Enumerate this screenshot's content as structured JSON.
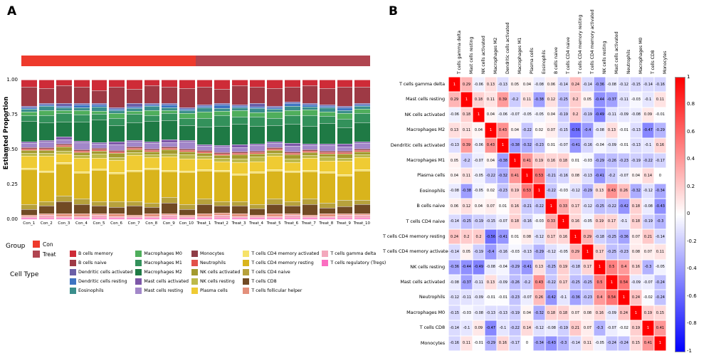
{
  "panels": {
    "a_label": "A",
    "b_label": "B"
  },
  "panel_a": {
    "y_title": "Estiamted Proportion",
    "group_title": "Group",
    "cell_type_title": "Cell Type"
  },
  "chart_data": [
    {
      "type": "bar",
      "subtype": "stacked-proportion",
      "ylabel": "Estiamted Proportion",
      "ylim": [
        0,
        1
      ],
      "ytick_labels": [
        "1.00",
        "0.75",
        "0.50",
        "0.25",
        "0.00"
      ],
      "groups": [
        {
          "name": "Con",
          "color": "#EE3A2C",
          "samples": 10
        },
        {
          "name": "Treat",
          "color": "#B04550",
          "samples": 10
        }
      ],
      "categories": [
        "Con_1",
        "Con_2",
        "Con_3",
        "Con_4",
        "Con_5",
        "Con_6",
        "Con_7",
        "Con_8",
        "Con_9",
        "Con_10",
        "Treat_1",
        "Treat_2",
        "Treat_3",
        "Treat_4",
        "Treat_5",
        "Treat_6",
        "Treat_7",
        "Treat_8",
        "Treat_9",
        "Treat_10"
      ],
      "cell_types": [
        {
          "name": "B cells memory",
          "color": "#CE2B37"
        },
        {
          "name": "B cells naive",
          "color": "#9E3A45"
        },
        {
          "name": "Dendritic cells activated",
          "color": "#6A5FA7"
        },
        {
          "name": "Dendritic cells resting",
          "color": "#3E74C2"
        },
        {
          "name": "Eosinophils",
          "color": "#3A8E8C"
        },
        {
          "name": "Macrophages M0",
          "color": "#4FAE5C"
        },
        {
          "name": "Macrophages M1",
          "color": "#33915B"
        },
        {
          "name": "Macrophages M2",
          "color": "#1F7A45"
        },
        {
          "name": "Mast cells activated",
          "color": "#7D57A8"
        },
        {
          "name": "Mast cells resting",
          "color": "#A287C9"
        },
        {
          "name": "Monocytes",
          "color": "#8F3D46"
        },
        {
          "name": "Neutrophils",
          "color": "#E2514A"
        },
        {
          "name": "NK cells activated",
          "color": "#A39A2F"
        },
        {
          "name": "NK cells resting",
          "color": "#BDB94A"
        },
        {
          "name": "Plasma cells",
          "color": "#EFCB33"
        },
        {
          "name": "T cells CD4 memory activated",
          "color": "#F6E269"
        },
        {
          "name": "T cells CD4 memory resting",
          "color": "#D9B41C"
        },
        {
          "name": "T cells CD4 naive",
          "color": "#B7A13C"
        },
        {
          "name": "T cells CD8",
          "color": "#714A24"
        },
        {
          "name": "T cells follicular helper",
          "color": "#E3907B"
        },
        {
          "name": "T cells gamma delta",
          "color": "#F3A8BC"
        },
        {
          "name": "T cells regulatory (Tregs)",
          "color": "#FB6EC1"
        }
      ],
      "values": [
        [
          5,
          13,
          1,
          1,
          2,
          2,
          4,
          14,
          1,
          3,
          1,
          1,
          2,
          2,
          8,
          1,
          24,
          3,
          4,
          1,
          1,
          1
        ],
        [
          6,
          10,
          1,
          1,
          3,
          3,
          5,
          12,
          1,
          4,
          1,
          1,
          2,
          2,
          10,
          1,
          20,
          3,
          5,
          1,
          2,
          1
        ],
        [
          4,
          12,
          2,
          1,
          2,
          2,
          6,
          10,
          2,
          3,
          1,
          1,
          3,
          2,
          6,
          1,
          22,
          4,
          8,
          2,
          1,
          1
        ],
        [
          5,
          11,
          1,
          2,
          2,
          3,
          5,
          13,
          1,
          5,
          1,
          1,
          2,
          2,
          9,
          1,
          18,
          4,
          6,
          2,
          1,
          1
        ],
        [
          7,
          9,
          1,
          1,
          3,
          2,
          4,
          15,
          1,
          3,
          1,
          1,
          2,
          3,
          7,
          1,
          21,
          3,
          5,
          1,
          2,
          1
        ],
        [
          5,
          14,
          1,
          1,
          2,
          3,
          5,
          11,
          2,
          4,
          1,
          1,
          3,
          2,
          8,
          1,
          19,
          4,
          4,
          2,
          1,
          1
        ],
        [
          6,
          10,
          2,
          1,
          2,
          2,
          6,
          12,
          1,
          3,
          1,
          1,
          2,
          2,
          10,
          1,
          20,
          3,
          6,
          1,
          1,
          1
        ],
        [
          4,
          12,
          1,
          1,
          3,
          3,
          4,
          14,
          1,
          4,
          1,
          1,
          2,
          2,
          7,
          1,
          23,
          3,
          4,
          2,
          1,
          1
        ],
        [
          5,
          11,
          1,
          2,
          2,
          2,
          5,
          13,
          2,
          3,
          1,
          1,
          3,
          2,
          9,
          1,
          18,
          4,
          7,
          1,
          2,
          1
        ],
        [
          6,
          13,
          1,
          1,
          2,
          3,
          5,
          10,
          1,
          5,
          1,
          1,
          2,
          3,
          8,
          1,
          22,
          3,
          4,
          1,
          1,
          1
        ],
        [
          5,
          12,
          1,
          1,
          3,
          4,
          6,
          12,
          1,
          3,
          1,
          1,
          2,
          2,
          7,
          1,
          19,
          4,
          6,
          2,
          1,
          1
        ],
        [
          6,
          10,
          1,
          2,
          2,
          3,
          7,
          13,
          1,
          4,
          1,
          1,
          2,
          2,
          6,
          1,
          20,
          3,
          5,
          1,
          2,
          1
        ],
        [
          4,
          13,
          1,
          1,
          2,
          4,
          5,
          14,
          2,
          3,
          1,
          1,
          3,
          2,
          8,
          1,
          18,
          3,
          5,
          2,
          1,
          1
        ],
        [
          5,
          11,
          2,
          1,
          3,
          3,
          6,
          12,
          1,
          4,
          1,
          1,
          2,
          3,
          7,
          1,
          21,
          3,
          4,
          1,
          1,
          1
        ],
        [
          6,
          12,
          1,
          1,
          2,
          4,
          5,
          11,
          1,
          3,
          1,
          1,
          2,
          2,
          9,
          1,
          19,
          4,
          6,
          2,
          1,
          1
        ],
        [
          5,
          10,
          1,
          2,
          3,
          3,
          6,
          13,
          2,
          4,
          1,
          1,
          3,
          2,
          6,
          1,
          20,
          3,
          5,
          1,
          2,
          1
        ],
        [
          4,
          12,
          1,
          1,
          2,
          4,
          7,
          12,
          1,
          3,
          1,
          1,
          2,
          2,
          8,
          1,
          18,
          4,
          7,
          1,
          1,
          1
        ],
        [
          6,
          11,
          1,
          1,
          3,
          3,
          5,
          14,
          1,
          4,
          1,
          1,
          2,
          3,
          7,
          1,
          21,
          3,
          4,
          2,
          1,
          1
        ],
        [
          5,
          13,
          1,
          2,
          2,
          4,
          6,
          11,
          2,
          3,
          1,
          1,
          3,
          2,
          9,
          1,
          17,
          4,
          5,
          1,
          2,
          1
        ],
        [
          5,
          11,
          1,
          1,
          2,
          3,
          6,
          13,
          1,
          4,
          1,
          1,
          2,
          2,
          8,
          1,
          20,
          3,
          6,
          1,
          2,
          1
        ]
      ]
    },
    {
      "type": "heatmap",
      "subtype": "correlation",
      "labels": [
        "T cells gamma delta",
        "Mast cells resting",
        "NK cells activated",
        "Macrophages M2",
        "Dendritic cells activated",
        "Macrophages M1",
        "Plasma cells",
        "Eosinophils",
        "B cells naive",
        "T cells CD4 naive",
        "T cells CD4 memory resting",
        "T cells CD4 memory activated",
        "NK cells resting",
        "Mast cells activated",
        "Neutrophils",
        "Macrophages M0",
        "T cells CD8",
        "Monocytes"
      ],
      "matrix": [
        [
          1,
          0.29,
          -0.06,
          0.13,
          -0.13,
          0.05,
          0.04,
          -0.08,
          0.06,
          -0.14,
          0.24,
          -0.14,
          -0.36,
          -0.08,
          -0.12,
          -0.15,
          -0.14,
          -0.16
        ],
        [
          0.29,
          1,
          0.18,
          0.11,
          0.39,
          -0.2,
          0.11,
          -0.38,
          0.12,
          -0.25,
          0.2,
          0.05,
          -0.44,
          -0.37,
          -0.11,
          -0.03,
          -0.1,
          0.11
        ],
        [
          -0.06,
          0.18,
          1,
          0.04,
          -0.06,
          -0.07,
          -0.05,
          -0.05,
          0.04,
          -0.19,
          0.2,
          -0.19,
          -0.49,
          -0.11,
          -0.09,
          -0.08,
          0.09,
          -0.01
        ],
        [
          0.13,
          0.11,
          0.04,
          1,
          0.43,
          0.04,
          -0.22,
          0.02,
          0.07,
          -0.15,
          -0.56,
          -0.4,
          -0.08,
          0.13,
          -0.01,
          -0.13,
          -0.47,
          -0.29
        ],
        [
          -0.13,
          0.39,
          -0.06,
          0.43,
          1,
          -0.38,
          -0.32,
          -0.23,
          0.01,
          -0.07,
          -0.41,
          -0.16,
          -0.04,
          -0.09,
          -0.01,
          -0.13,
          -0.1,
          0.16
        ],
        [
          0.05,
          -0.2,
          -0.07,
          0.04,
          -0.38,
          1,
          0.41,
          0.19,
          0.16,
          0.18,
          0.01,
          -0.03,
          -0.29,
          -0.26,
          -0.23,
          -0.19,
          -0.22,
          -0.17
        ],
        [
          0.04,
          0.11,
          -0.05,
          -0.22,
          -0.32,
          0.41,
          1,
          0.53,
          -0.21,
          -0.16,
          0.08,
          -0.13,
          -0.41,
          -0.2,
          -0.07,
          0.04,
          0.14,
          0
        ],
        [
          -0.08,
          -0.38,
          -0.05,
          0.02,
          -0.23,
          0.19,
          0.53,
          1,
          -0.22,
          -0.03,
          -0.12,
          -0.29,
          0.13,
          0.43,
          0.26,
          -0.32,
          -0.12,
          -0.34
        ],
        [
          0.06,
          0.12,
          0.04,
          0.07,
          0.01,
          0.16,
          -0.21,
          -0.22,
          1,
          0.33,
          0.17,
          -0.12,
          -0.25,
          -0.22,
          -0.42,
          0.18,
          -0.08,
          -0.43
        ],
        [
          -0.14,
          -0.25,
          -0.19,
          -0.15,
          -0.07,
          0.18,
          -0.16,
          -0.03,
          0.33,
          1,
          0.16,
          -0.05,
          0.19,
          0.17,
          -0.1,
          0.18,
          -0.19,
          -0.3
        ],
        [
          0.24,
          0.2,
          0.2,
          -0.56,
          -0.41,
          0.01,
          0.08,
          -0.12,
          0.17,
          0.16,
          1,
          0.29,
          -0.18,
          -0.25,
          -0.36,
          0.07,
          0.21,
          -0.14
        ],
        [
          -0.14,
          0.05,
          -0.19,
          -0.4,
          -0.16,
          -0.03,
          -0.13,
          -0.29,
          -0.12,
          -0.05,
          0.29,
          1,
          0.17,
          -0.25,
          -0.23,
          0.08,
          0.07,
          0.11
        ],
        [
          -0.36,
          -0.44,
          -0.49,
          -0.08,
          -0.04,
          -0.29,
          -0.41,
          0.13,
          -0.25,
          0.19,
          -0.18,
          0.17,
          1,
          0.5,
          0.4,
          0.16,
          -0.3,
          -0.05
        ],
        [
          -0.08,
          -0.37,
          -0.11,
          0.13,
          -0.09,
          -0.26,
          -0.2,
          0.43,
          -0.22,
          0.17,
          -0.25,
          -0.25,
          0.5,
          1,
          0.54,
          -0.09,
          -0.07,
          -0.24
        ],
        [
          -0.12,
          -0.11,
          -0.09,
          -0.01,
          -0.01,
          -0.23,
          -0.07,
          0.26,
          -0.42,
          -0.1,
          -0.36,
          -0.23,
          0.4,
          0.54,
          1,
          0.24,
          -0.02,
          -0.24
        ],
        [
          -0.15,
          -0.03,
          -0.08,
          -0.13,
          -0.13,
          -0.19,
          0.04,
          -0.32,
          0.18,
          0.18,
          0.07,
          0.08,
          0.16,
          -0.09,
          0.24,
          1,
          0.19,
          0.15
        ],
        [
          -0.14,
          -0.1,
          0.09,
          -0.47,
          -0.1,
          -0.22,
          0.14,
          -0.12,
          -0.08,
          -0.19,
          0.21,
          0.07,
          -0.3,
          -0.07,
          -0.02,
          0.19,
          1,
          0.41
        ],
        [
          -0.16,
          0.11,
          -0.01,
          -0.29,
          0.16,
          -0.17,
          0,
          -0.34,
          -0.43,
          -0.3,
          -0.14,
          0.11,
          -0.05,
          -0.24,
          -0.24,
          0.15,
          0.41,
          1
        ]
      ],
      "colorbar": {
        "min": -1,
        "max": 1,
        "tick_labels": [
          "1",
          "0.8",
          "0.6",
          "0.4",
          "0.2",
          "0",
          "-0.2",
          "-0.4",
          "-0.6",
          "-0.8",
          "-1"
        ],
        "max_color": "#FF0000",
        "mid_color": "#FFFFFF",
        "min_color": "#0000FF"
      }
    }
  ]
}
